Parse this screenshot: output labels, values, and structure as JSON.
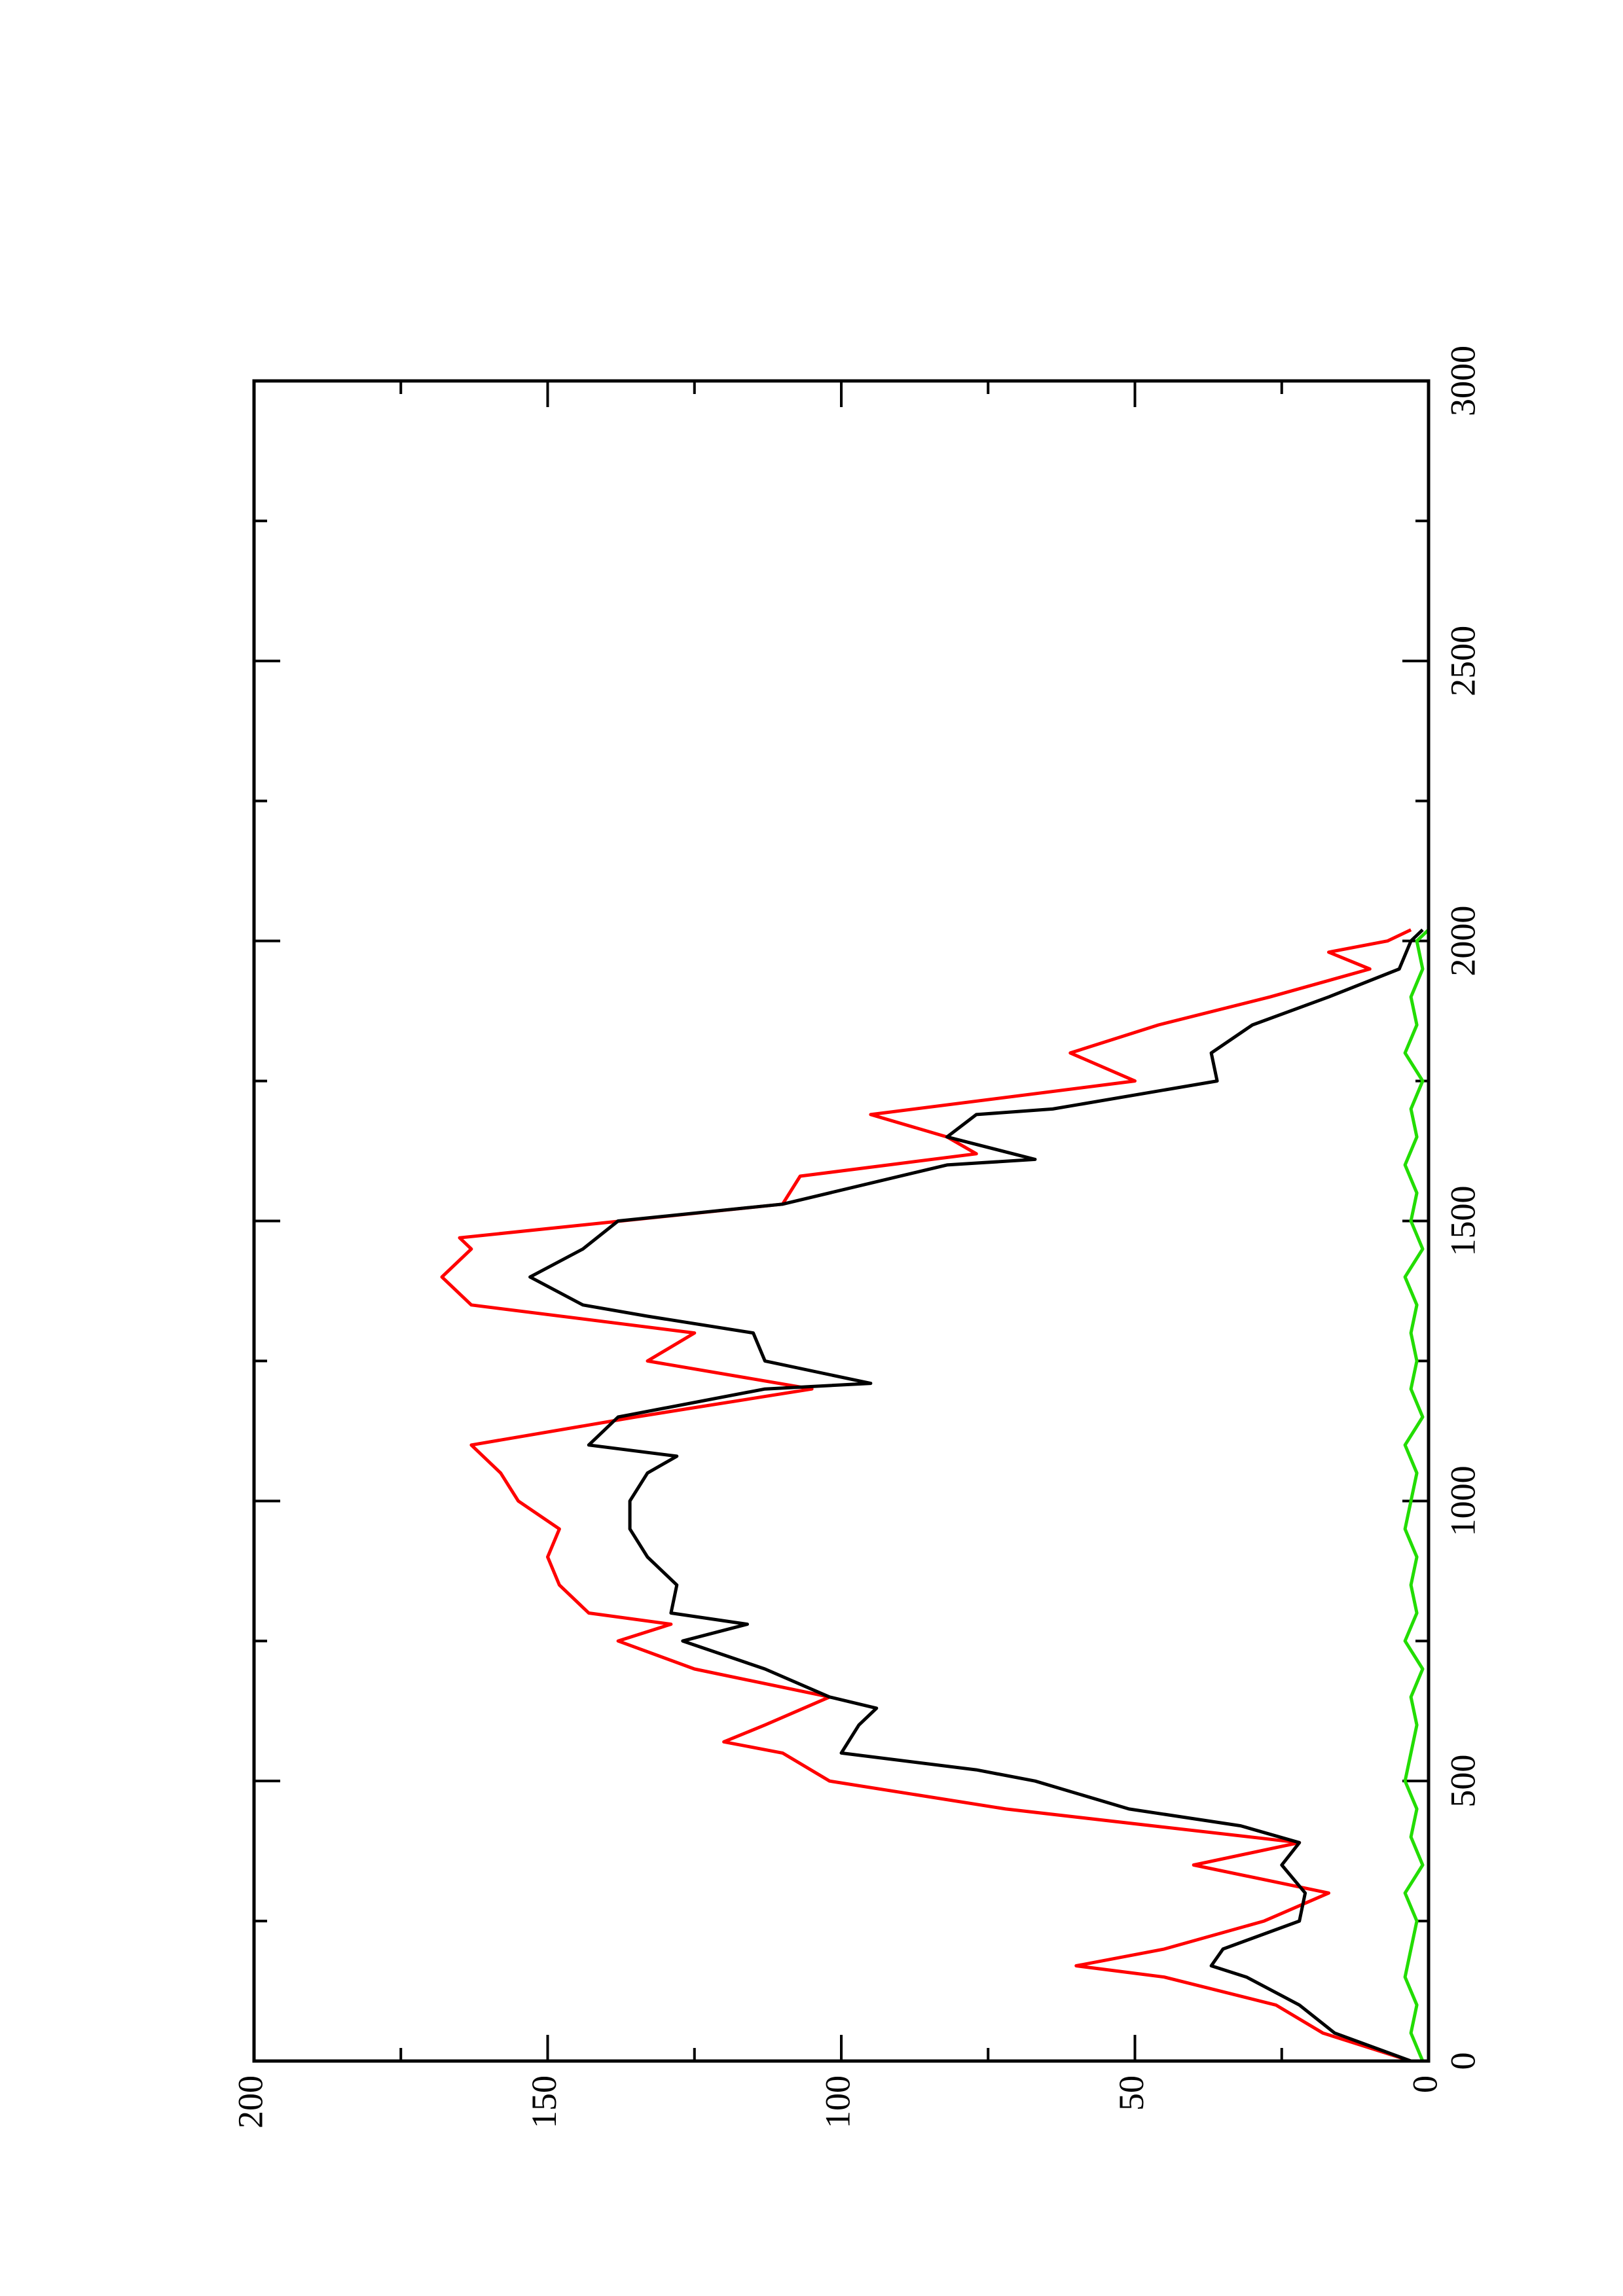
{
  "chart_data": {
    "type": "line",
    "xlim": [
      0,
      3000
    ],
    "xticks": [
      0,
      500,
      1000,
      1500,
      2000,
      2500,
      3000
    ],
    "ylim": [
      0,
      200
    ],
    "yticks": [
      0,
      50,
      100,
      150,
      200
    ],
    "series": [
      {
        "color": "#000000",
        "x": [
          0,
          50,
          100,
          150,
          170,
          200,
          250,
          300,
          350,
          390,
          420,
          450,
          500,
          520,
          550,
          600,
          630,
          650,
          700,
          750,
          780,
          800,
          850,
          900,
          950,
          1000,
          1050,
          1080,
          1100,
          1150,
          1200,
          1210,
          1250,
          1300,
          1330,
          1350,
          1400,
          1450,
          1500,
          1530,
          1600,
          1610,
          1650,
          1690,
          1700,
          1750,
          1800,
          1850,
          1900,
          1950,
          2000,
          2020
        ],
        "values": [
          3,
          16,
          22,
          31,
          37,
          35,
          22,
          21,
          25,
          22,
          32,
          51,
          67,
          77,
          100,
          97,
          94,
          102,
          113,
          127,
          116,
          129,
          128,
          133,
          136,
          136,
          133,
          128,
          143,
          138,
          113,
          95,
          113,
          115,
          133,
          144,
          153,
          144,
          138,
          110,
          82,
          67,
          82,
          77,
          64,
          36,
          37,
          30,
          17,
          5,
          3,
          1
        ]
      },
      {
        "color": "#ff0000",
        "x": [
          0,
          50,
          100,
          150,
          170,
          200,
          250,
          300,
          350,
          390,
          420,
          450,
          500,
          550,
          570,
          600,
          650,
          700,
          750,
          780,
          800,
          850,
          900,
          950,
          1000,
          1050,
          1100,
          1150,
          1200,
          1250,
          1300,
          1350,
          1400,
          1450,
          1470,
          1530,
          1580,
          1620,
          1650,
          1690,
          1750,
          1800,
          1850,
          1900,
          1950,
          1980,
          2000,
          2020
        ],
        "values": [
          3,
          18,
          26,
          45,
          60,
          45,
          28,
          17,
          40,
          22,
          47,
          72,
          102,
          110,
          120,
          113,
          102,
          125,
          138,
          129,
          143,
          148,
          150,
          148,
          155,
          158,
          163,
          135,
          105,
          133,
          125,
          163,
          168,
          163,
          165,
          110,
          107,
          77,
          82,
          95,
          50,
          61,
          46,
          27,
          10,
          17,
          7,
          3
        ]
      },
      {
        "color": "#22dd00",
        "x": [
          0,
          50,
          100,
          150,
          200,
          250,
          300,
          350,
          400,
          450,
          500,
          550,
          600,
          650,
          700,
          750,
          800,
          850,
          900,
          950,
          1000,
          1050,
          1100,
          1150,
          1200,
          1250,
          1300,
          1350,
          1400,
          1450,
          1500,
          1550,
          1600,
          1650,
          1700,
          1750,
          1800,
          1850,
          1900,
          1950,
          2000,
          2020
        ],
        "values": [
          1,
          3,
          2,
          4,
          3,
          2,
          4,
          1,
          3,
          2,
          4,
          3,
          2,
          3,
          1,
          4,
          2,
          3,
          2,
          4,
          3,
          2,
          4,
          1,
          3,
          2,
          3,
          2,
          4,
          1,
          3,
          2,
          4,
          2,
          3,
          1,
          4,
          2,
          3,
          1,
          2,
          0
        ]
      }
    ]
  }
}
